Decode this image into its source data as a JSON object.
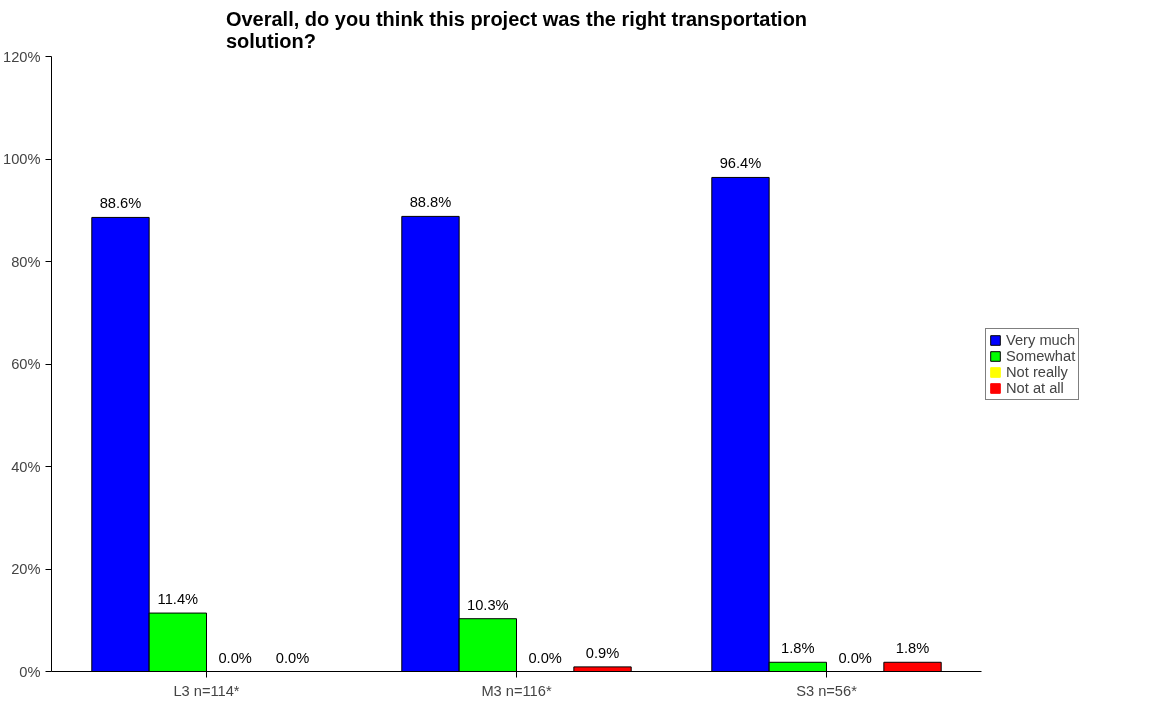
{
  "chart_data": {
    "type": "bar",
    "title": "Overall, do you think this project was the right transportation solution?",
    "categories": [
      "L3 n=114*",
      "M3 n=116*",
      "S3 n=56*"
    ],
    "series": [
      {
        "name": "Very much",
        "color": "#0000ff",
        "values": [
          88.6,
          88.8,
          96.4
        ],
        "value_labels": [
          "88.6%",
          "88.8%",
          "96.4%"
        ]
      },
      {
        "name": "Somewhat",
        "color": "#00ff00",
        "values": [
          11.4,
          10.3,
          1.8
        ],
        "value_labels": [
          "11.4%",
          "10.3%",
          "1.8%"
        ]
      },
      {
        "name": "Not really",
        "color": "#ffff00",
        "values": [
          0.0,
          0.0,
          0.0
        ],
        "value_labels": [
          "0.0%",
          "0.0%",
          "0.0%"
        ]
      },
      {
        "name": "Not at all",
        "color": "#ff0000",
        "values": [
          0.0,
          0.9,
          1.8
        ],
        "value_labels": [
          "0.0%",
          "0.9%",
          "1.8%"
        ]
      }
    ],
    "ylim": [
      0,
      120
    ],
    "yticks": [
      {
        "value": 0,
        "label": "0%"
      },
      {
        "value": 20,
        "label": "20%"
      },
      {
        "value": 40,
        "label": "40%"
      },
      {
        "value": 60,
        "label": "60%"
      },
      {
        "value": 80,
        "label": "80%"
      },
      {
        "value": 100,
        "label": "100%"
      },
      {
        "value": 120,
        "label": "120%"
      }
    ],
    "grid": false,
    "legend": "right"
  }
}
